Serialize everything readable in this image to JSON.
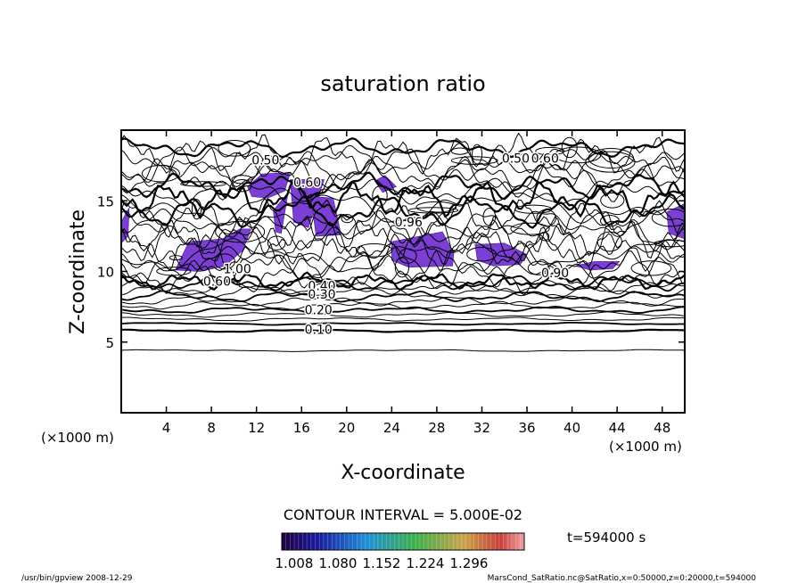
{
  "chart_data": {
    "type": "contour",
    "title": "saturation ratio",
    "xlabel": "X-coordinate",
    "ylabel": "Z-coordinate",
    "x_unit": "(×1000 m)",
    "y_unit": "(×1000 m)",
    "xlim": [
      0,
      50
    ],
    "ylim": [
      0,
      20
    ],
    "x_ticks": [
      4,
      8,
      12,
      16,
      20,
      24,
      28,
      32,
      36,
      40,
      44,
      48
    ],
    "y_ticks": [
      5,
      10,
      15
    ],
    "contour_interval_text": "CONTOUR INTERVAL = 5.000E-02",
    "time_text": "t=594000 s",
    "colorbar": {
      "tick_labels": [
        "1.008",
        "1.080",
        "1.152",
        "1.224",
        "1.296"
      ],
      "range": [
        1.008,
        1.296
      ]
    },
    "contour_labels": [
      {
        "text": "0.50",
        "x": 12.8,
        "z": 17.9
      },
      {
        "text": "0.50",
        "x": 35.0,
        "z": 18.0
      },
      {
        "text": "0.60",
        "x": 37.6,
        "z": 18.0
      },
      {
        "text": "0.60",
        "x": 16.5,
        "z": 16.3
      },
      {
        "text": "0.96",
        "x": 25.5,
        "z": 13.5
      },
      {
        "text": "1.00",
        "x": 10.3,
        "z": 10.2
      },
      {
        "text": "0.60",
        "x": 8.5,
        "z": 9.3
      },
      {
        "text": "0.40",
        "x": 17.8,
        "z": 9.0
      },
      {
        "text": "0.30",
        "x": 17.8,
        "z": 8.4
      },
      {
        "text": "0.20",
        "x": 17.5,
        "z": 7.3
      },
      {
        "text": "0.10",
        "x": 17.5,
        "z": 5.9
      },
      {
        "text": "0.90",
        "x": 38.5,
        "z": 9.9
      }
    ],
    "supersaturated_regions_color": "#7b3fd6",
    "line_color": "#000000"
  },
  "footer": {
    "left": "/usr/bin/gpview   2008-12-29",
    "right": "MarsCond_SatRatio.nc@SatRatio,x=0:50000,z=0:20000,t=594000"
  }
}
